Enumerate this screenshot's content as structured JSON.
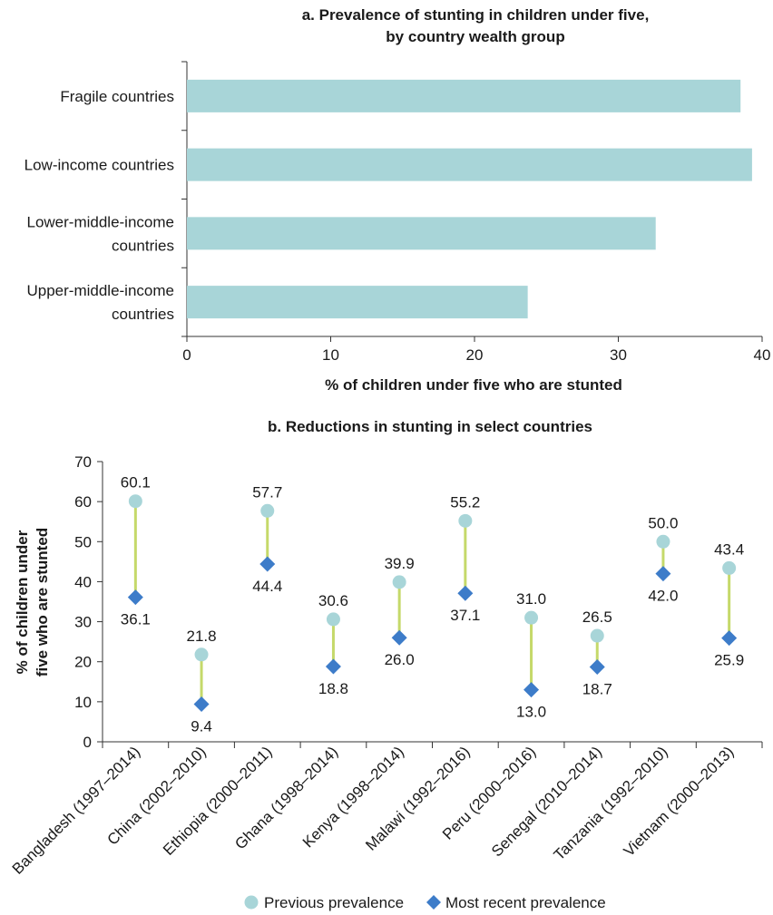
{
  "chart_data": [
    {
      "type": "bar",
      "orientation": "horizontal",
      "title_lines": [
        "a. Prevalence of stunting in children under five,",
        "by country wealth group"
      ],
      "categories": [
        [
          "Fragile countries"
        ],
        [
          "Low-income countries"
        ],
        [
          "Lower-middle-income",
          "countries"
        ],
        [
          "Upper-middle-income",
          "countries"
        ]
      ],
      "values": [
        38.5,
        39.3,
        32.6,
        23.7
      ],
      "xlabel": "% of children under five who are stunted",
      "ylabel": "",
      "xlim": [
        0,
        40
      ],
      "xticks": [
        0,
        10,
        20,
        30,
        40
      ],
      "bar_color": "#a8d5d8",
      "grid": false
    },
    {
      "type": "scatter",
      "style": "dumbbell",
      "title": "b. Reductions in stunting in select countries",
      "categories": [
        "Bangladesh (1997–2014)",
        "China (2002–2010)",
        "Ethiopia (2000–2011)",
        "Ghana (1998–2014)",
        "Kenya (1998–2014)",
        "Malawi (1992–2016)",
        "Peru (2000–2016)",
        "Senegal (2010–2014)",
        "Tanzania (1992–2010)",
        "Vietnam (2000–2013)"
      ],
      "series": [
        {
          "name": "Previous prevalence",
          "marker": "circle",
          "color": "#a8d5d8",
          "values": [
            60.1,
            21.8,
            57.7,
            30.6,
            39.9,
            55.2,
            31.0,
            26.5,
            50.0,
            43.4
          ],
          "labels": [
            "60.1",
            "21.8",
            "57.7",
            "30.6",
            "39.9",
            "55.2",
            "31.0",
            "26.5",
            "50.0",
            "43.4"
          ]
        },
        {
          "name": "Most recent prevalence",
          "marker": "diamond",
          "color": "#3d7cc9",
          "values": [
            36.1,
            9.4,
            44.4,
            18.8,
            26.0,
            37.1,
            13.0,
            18.7,
            42.0,
            25.9
          ],
          "labels": [
            "36.1",
            "9.4",
            "44.4",
            "18.8",
            "26.0",
            "37.1",
            "13.0",
            "18.7",
            "42.0",
            "25.9"
          ]
        }
      ],
      "connector_color": "#c5d96a",
      "ylabel_lines": [
        "% of children under",
        "five who are stunted"
      ],
      "xlabel": "",
      "ylim": [
        0,
        70
      ],
      "yticks": [
        0,
        10,
        20,
        30,
        40,
        50,
        60,
        70
      ],
      "legend_position": "bottom-center",
      "grid": false
    }
  ]
}
